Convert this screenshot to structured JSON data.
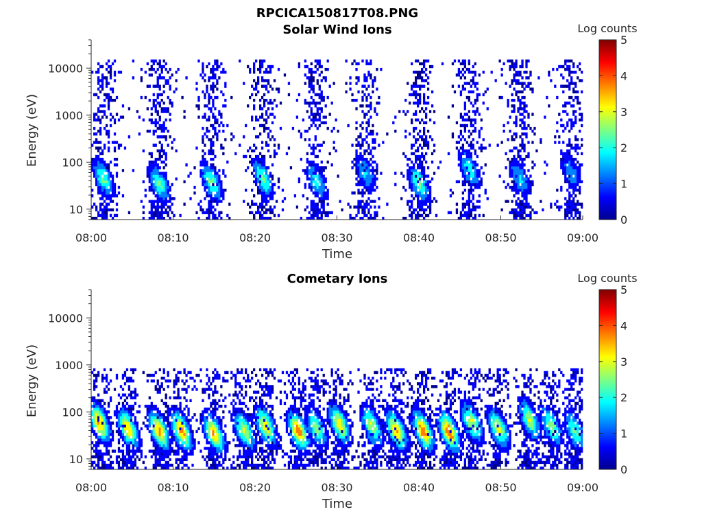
{
  "figure": {
    "title": "RPCICA150817T08.PNG"
  },
  "colormap": [
    "#00008f",
    "#0000ff",
    "#0080ff",
    "#00ffff",
    "#80ff80",
    "#ffff00",
    "#ff8000",
    "#ff0000",
    "#800000"
  ],
  "chart_data": [
    {
      "type": "heatmap",
      "title": "Solar Wind Ions",
      "xlabel": "Time",
      "ylabel": "Energy (eV)",
      "x_range": [
        "08:00",
        "09:00"
      ],
      "x_ticks": [
        "08:00",
        "08:10",
        "08:20",
        "08:30",
        "08:40",
        "08:50",
        "09:00"
      ],
      "y_scale": "log",
      "y_range": [
        6,
        40000
      ],
      "y_ticks": [
        10,
        100,
        1000,
        10000
      ],
      "y_tick_labels": [
        "10",
        "100",
        "1000",
        "10000"
      ],
      "colorbar": {
        "label": "Log counts",
        "range": [
          0,
          5
        ],
        "ticks": [
          "0",
          "1",
          "2",
          "3",
          "4",
          "5"
        ]
      },
      "burst_centers_min": [
        1.5,
        8.3,
        14.7,
        21.0,
        27.5,
        33.5,
        40.0,
        46.2,
        52.3,
        58.6
      ],
      "burst_peak_log_counts": [
        2.3,
        2.3,
        2.4,
        2.3,
        1.9,
        1.6,
        2.4,
        2.0,
        1.7,
        1.4
      ],
      "burst_peak_energy_ev": [
        45,
        35,
        38,
        45,
        40,
        60,
        35,
        70,
        45,
        60
      ],
      "background_energy_range_ev": [
        6,
        15000
      ]
    },
    {
      "type": "heatmap",
      "title": "Cometary Ions",
      "xlabel": "Time",
      "ylabel": "Energy (eV)",
      "x_range": [
        "08:00",
        "09:00"
      ],
      "x_ticks": [
        "08:00",
        "08:10",
        "08:20",
        "08:30",
        "08:40",
        "08:50",
        "09:00"
      ],
      "y_scale": "log",
      "y_range": [
        6,
        40000
      ],
      "y_ticks": [
        10,
        100,
        1000,
        10000
      ],
      "y_tick_labels": [
        "10",
        "100",
        "1000",
        "10000"
      ],
      "colorbar": {
        "label": "Log counts",
        "range": [
          0,
          5
        ],
        "ticks": [
          "0",
          "1",
          "2",
          "3",
          "4",
          "5"
        ]
      },
      "burst_centers_min": [
        1.0,
        4.5,
        8.3,
        11.0,
        15.0,
        18.7,
        21.3,
        25.3,
        27.5,
        30.3,
        34.3,
        37.3,
        40.5,
        43.7,
        46.5,
        49.7,
        53.5,
        56.2,
        59.0
      ],
      "burst_peak_log_counts": [
        3.6,
        3.3,
        3.5,
        3.7,
        3.6,
        2.8,
        3.2,
        3.8,
        2.6,
        3.2,
        2.8,
        3.5,
        3.8,
        3.9,
        2.9,
        3.0,
        2.8,
        2.6,
        2.3
      ],
      "burst_peak_energy_ev": [
        60,
        45,
        40,
        40,
        35,
        40,
        50,
        40,
        45,
        55,
        50,
        40,
        40,
        38,
        60,
        45,
        70,
        50,
        40
      ],
      "background_energy_range_ev": [
        6,
        800
      ]
    }
  ]
}
